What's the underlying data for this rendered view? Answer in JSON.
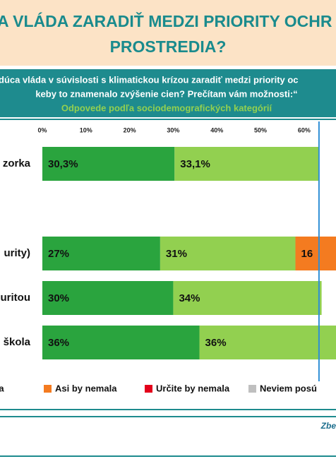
{
  "header": {
    "title_lines": [
      "A VLÁDA ZARADIŤ MEDZI PRIORITY OCHR",
      "PROSTREDIA?"
    ],
    "question_lines": [
      "dúca vláda v súvislosti s klimatickou krízou zaradiť medzi priority oc",
      "keby to znamenalo zvýšenie cien? Prečítam vám možnosti:“"
    ],
    "subtitle": "Odpovede podľa sociodemografických kategórií"
  },
  "chart_data": {
    "type": "stacked-barh",
    "categories": [
      "zorka",
      "urity)",
      "uritou",
      "škola"
    ],
    "series": [
      {
        "color": "#2aa43e",
        "values": [
          30.3,
          27,
          30,
          36
        ],
        "value_labels": [
          "30,3%",
          "27%",
          "30%",
          "36%"
        ]
      },
      {
        "name": "mala",
        "color": "#92d050",
        "values": [
          33.1,
          31,
          34,
          36
        ],
        "value_labels": [
          "33,1%",
          "31%",
          "34%",
          "36%"
        ]
      },
      {
        "name": "Asi by nemala",
        "color": "#f47b20",
        "values": [
          null,
          16,
          null,
          null
        ],
        "value_labels": [
          null,
          "16",
          null,
          null
        ]
      },
      {
        "name": "Určite by nemala",
        "color": "#e3001b",
        "values": [
          null,
          null,
          null,
          null
        ]
      },
      {
        "name": "Neviem posú",
        "color": "#bfbfbf",
        "values": [
          null,
          null,
          null,
          null
        ]
      }
    ],
    "reference_line": 63.4,
    "xlim": [
      0,
      67.3
    ],
    "xticks": [
      {
        "value": 0,
        "label": "0%"
      },
      {
        "value": 10,
        "label": "10%"
      },
      {
        "value": 20,
        "label": "20%"
      },
      {
        "value": 30,
        "label": "30%"
      },
      {
        "value": 40,
        "label": "40%"
      },
      {
        "value": 50,
        "label": "50%"
      },
      {
        "value": 60,
        "label": "60%"
      }
    ]
  },
  "footer": {
    "source": "Zbe"
  }
}
